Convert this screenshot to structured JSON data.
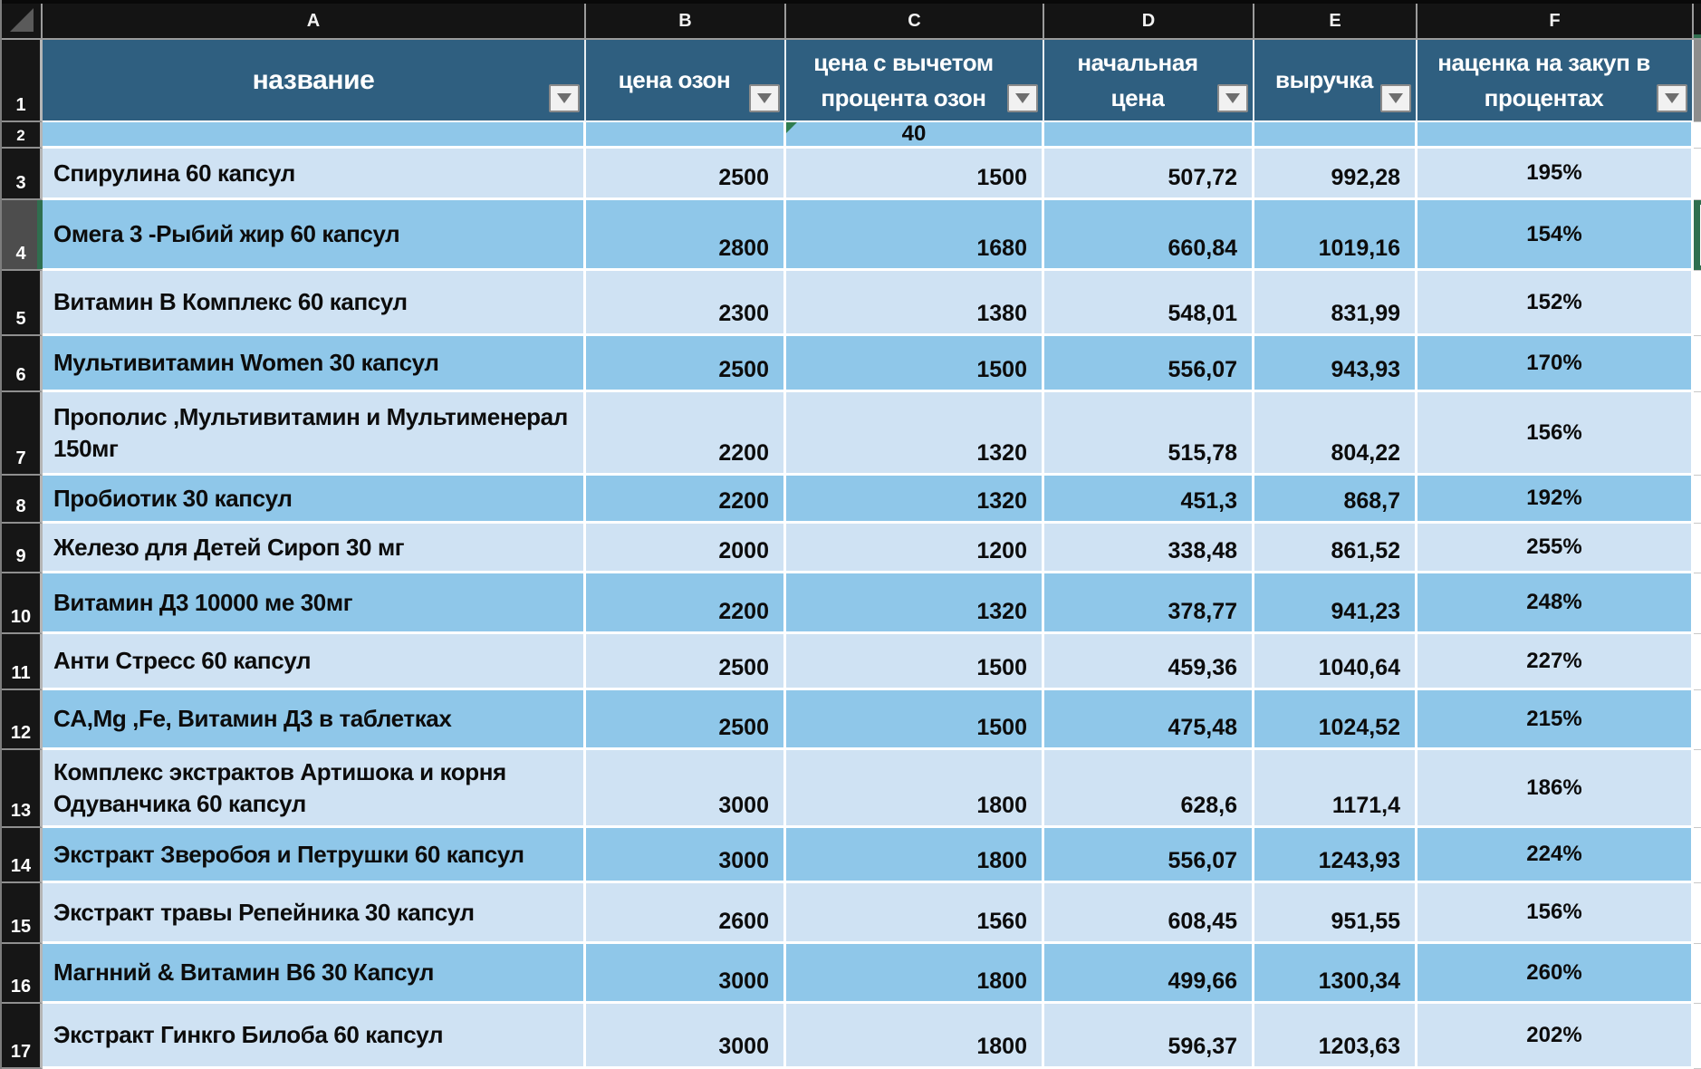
{
  "app": {
    "kind": "spreadsheet",
    "language": "ru"
  },
  "columns_bar": {
    "letters": [
      "A",
      "B",
      "C",
      "D",
      "E",
      "F"
    ]
  },
  "header": {
    "row_number": "1",
    "filter_icon": "chevron-down",
    "cells": [
      {
        "col": "A",
        "label": "название"
      },
      {
        "col": "B",
        "label": "цена озон"
      },
      {
        "col": "C",
        "label": "цена с  вычетом процента озон"
      },
      {
        "col": "D",
        "label": "начальная цена"
      },
      {
        "col": "E",
        "label": "выручка"
      },
      {
        "col": "F",
        "label": "наценка на закуп в процентах"
      }
    ]
  },
  "fee_row": {
    "row_number": "2",
    "c_value": "40"
  },
  "rows": [
    {
      "num": "3",
      "name": "Спирулина 60 капсул",
      "price_ozon": "2500",
      "price_after_fee": "1500",
      "start_price": "507,72",
      "revenue": "992,28",
      "markup": "195%"
    },
    {
      "num": "4",
      "name": "Омега 3 -Рыбий жир 60 капсул",
      "price_ozon": "2800",
      "price_after_fee": "1680",
      "start_price": "660,84",
      "revenue": "1019,16",
      "markup": "154%"
    },
    {
      "num": "5",
      "name": "Витамин В Комплекс 60 капсул",
      "price_ozon": "2300",
      "price_after_fee": "1380",
      "start_price": "548,01",
      "revenue": "831,99",
      "markup": "152%"
    },
    {
      "num": "6",
      "name": "Мультивитамин Women 30 капсул",
      "price_ozon": "2500",
      "price_after_fee": "1500",
      "start_price": "556,07",
      "revenue": "943,93",
      "markup": "170%"
    },
    {
      "num": "7",
      "name": "Прополис ,Мультивитамин и Мультименерал 150мг",
      "price_ozon": "2200",
      "price_after_fee": "1320",
      "start_price": "515,78",
      "revenue": "804,22",
      "markup": "156%"
    },
    {
      "num": "8",
      "name": "Пробиотик  30  капсул",
      "price_ozon": "2200",
      "price_after_fee": "1320",
      "start_price": "451,3",
      "revenue": "868,7",
      "markup": "192%"
    },
    {
      "num": "9",
      "name": "Железо для Детей Сироп 30 мг",
      "price_ozon": "2000",
      "price_after_fee": "1200",
      "start_price": "338,48",
      "revenue": "861,52",
      "markup": "255%"
    },
    {
      "num": "10",
      "name": "Витамин  Д3 10000 ме 30мг",
      "price_ozon": "2200",
      "price_after_fee": "1320",
      "start_price": "378,77",
      "revenue": "941,23",
      "markup": "248%"
    },
    {
      "num": "11",
      "name": "Анти Стресс 60 капсул",
      "price_ozon": "2500",
      "price_after_fee": "1500",
      "start_price": "459,36",
      "revenue": "1040,64",
      "markup": "227%"
    },
    {
      "num": "12",
      "name": "CA,Mg ,Fe, Витамин Д3 в таблетках",
      "price_ozon": "2500",
      "price_after_fee": "1500",
      "start_price": "475,48",
      "revenue": "1024,52",
      "markup": "215%"
    },
    {
      "num": "13",
      "name": "Комплекс экстрактов Артишока и корня Одуванчика 60 капсул",
      "price_ozon": "3000",
      "price_after_fee": "1800",
      "start_price": "628,6",
      "revenue": "1171,4",
      "markup": "186%"
    },
    {
      "num": "14",
      "name": "Экстракт Зверобоя и Петрушки 60 капсул",
      "price_ozon": "3000",
      "price_after_fee": "1800",
      "start_price": "556,07",
      "revenue": "1243,93",
      "markup": "224%"
    },
    {
      "num": "15",
      "name": "Экстракт травы  Репейника 30 капсул",
      "price_ozon": "2600",
      "price_after_fee": "1560",
      "start_price": "608,45",
      "revenue": "951,55",
      "markup": "156%"
    },
    {
      "num": "16",
      "name": "Магнний & Витамин В6 30 Капсул",
      "price_ozon": "3000",
      "price_after_fee": "1800",
      "start_price": "499,66",
      "revenue": "1300,34",
      "markup": "260%"
    },
    {
      "num": "17",
      "name": "Экстракт Гинкго Билоба 60 капсул",
      "price_ozon": "3000",
      "price_after_fee": "1800",
      "start_price": "596,37",
      "revenue": "1203,63",
      "markup": "202%"
    }
  ],
  "selection": {
    "selected_row": "4",
    "selected_cell_column": "G"
  },
  "colors": {
    "header_blue": "#2f5f80",
    "row_light": "#cfe2f3",
    "row_medium": "#8fc7e9",
    "frame_dark": "#141414",
    "accent_green": "#2f6f4f"
  }
}
